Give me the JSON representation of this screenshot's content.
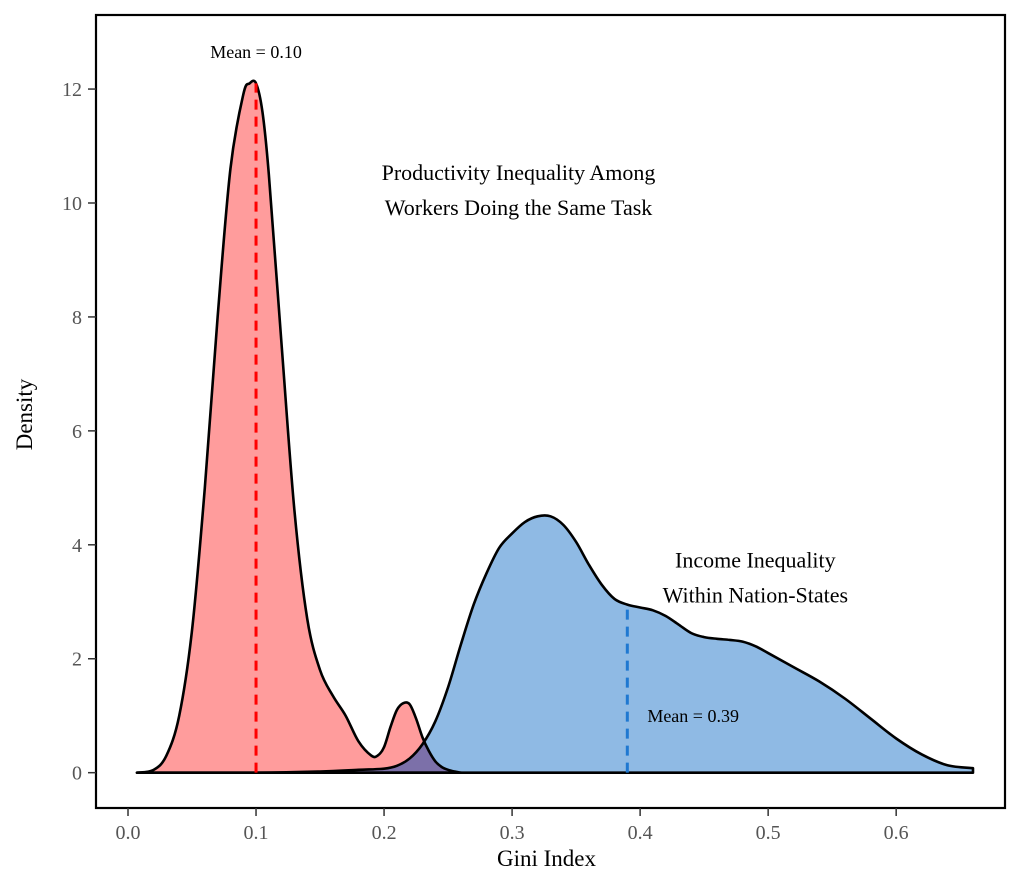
{
  "chart_data": {
    "type": "area",
    "xlabel": "Gini Index",
    "ylabel": "Density",
    "xlim": [
      -0.025,
      0.685
    ],
    "ylim": [
      -0.62,
      13.3
    ],
    "x_ticks": [
      0.0,
      0.1,
      0.2,
      0.3,
      0.4,
      0.5,
      0.6
    ],
    "x_tick_labels": [
      "0.0",
      "0.1",
      "0.2",
      "0.3",
      "0.4",
      "0.5",
      "0.6"
    ],
    "y_ticks": [
      0,
      2,
      4,
      6,
      8,
      10,
      12
    ],
    "y_tick_labels": [
      "0",
      "2",
      "4",
      "6",
      "8",
      "10",
      "12"
    ],
    "grid": false,
    "series": [
      {
        "name": "Productivity Inequality Among Workers Doing the Same Task",
        "color": "#F8766D",
        "fill": "#FF8080",
        "mean": 0.1,
        "mean_label_prefix": "Mean =",
        "mean_label_value": "0.10",
        "mean_line_color": "#FF0000",
        "x": [
          0.007,
          0.02,
          0.03,
          0.04,
          0.05,
          0.06,
          0.07,
          0.08,
          0.09,
          0.095,
          0.1,
          0.105,
          0.11,
          0.12,
          0.13,
          0.14,
          0.15,
          0.16,
          0.17,
          0.18,
          0.19,
          0.195,
          0.2,
          0.205,
          0.21,
          0.215,
          0.22,
          0.225,
          0.23,
          0.235,
          0.24,
          0.245,
          0.25,
          0.255,
          0.26
        ],
        "y": [
          0.0,
          0.05,
          0.3,
          1.0,
          2.5,
          5.0,
          8.0,
          10.6,
          11.9,
          12.1,
          12.1,
          11.6,
          10.5,
          7.5,
          4.6,
          2.7,
          1.8,
          1.35,
          1.0,
          0.55,
          0.3,
          0.3,
          0.45,
          0.8,
          1.1,
          1.22,
          1.2,
          0.95,
          0.62,
          0.38,
          0.2,
          0.1,
          0.05,
          0.02,
          0.0
        ]
      },
      {
        "name": "Income Inequality Within Nation-States",
        "color": "#1F4E8C",
        "fill": "#6FA6DC",
        "mean": 0.39,
        "mean_label_prefix": "Mean =",
        "mean_label_value": "0.39",
        "mean_line_color": "#1F78D1",
        "x": [
          0.007,
          0.1,
          0.15,
          0.18,
          0.2,
          0.21,
          0.22,
          0.23,
          0.24,
          0.25,
          0.26,
          0.27,
          0.28,
          0.29,
          0.3,
          0.31,
          0.32,
          0.33,
          0.34,
          0.35,
          0.36,
          0.37,
          0.38,
          0.39,
          0.4,
          0.41,
          0.42,
          0.43,
          0.44,
          0.45,
          0.46,
          0.47,
          0.48,
          0.49,
          0.5,
          0.52,
          0.54,
          0.56,
          0.58,
          0.6,
          0.62,
          0.64,
          0.66
        ],
        "y": [
          0.0,
          0.0,
          0.02,
          0.05,
          0.07,
          0.12,
          0.25,
          0.5,
          0.9,
          1.5,
          2.25,
          2.95,
          3.5,
          3.95,
          4.2,
          4.4,
          4.5,
          4.5,
          4.35,
          4.05,
          3.65,
          3.3,
          3.05,
          2.95,
          2.9,
          2.85,
          2.75,
          2.6,
          2.45,
          2.38,
          2.35,
          2.33,
          2.3,
          2.22,
          2.1,
          1.85,
          1.6,
          1.3,
          0.95,
          0.6,
          0.32,
          0.13,
          0.08
        ]
      }
    ],
    "overlap_fill": "#7A6AA5",
    "annotations": [
      {
        "line1": "Productivity Inequality Among",
        "line2": "Workers Doing the Same Task",
        "x": 0.305,
        "y": 10.4
      },
      {
        "line1": "Income Inequality",
        "line2": "Within Nation-States",
        "x": 0.49,
        "y": 3.6
      }
    ]
  }
}
